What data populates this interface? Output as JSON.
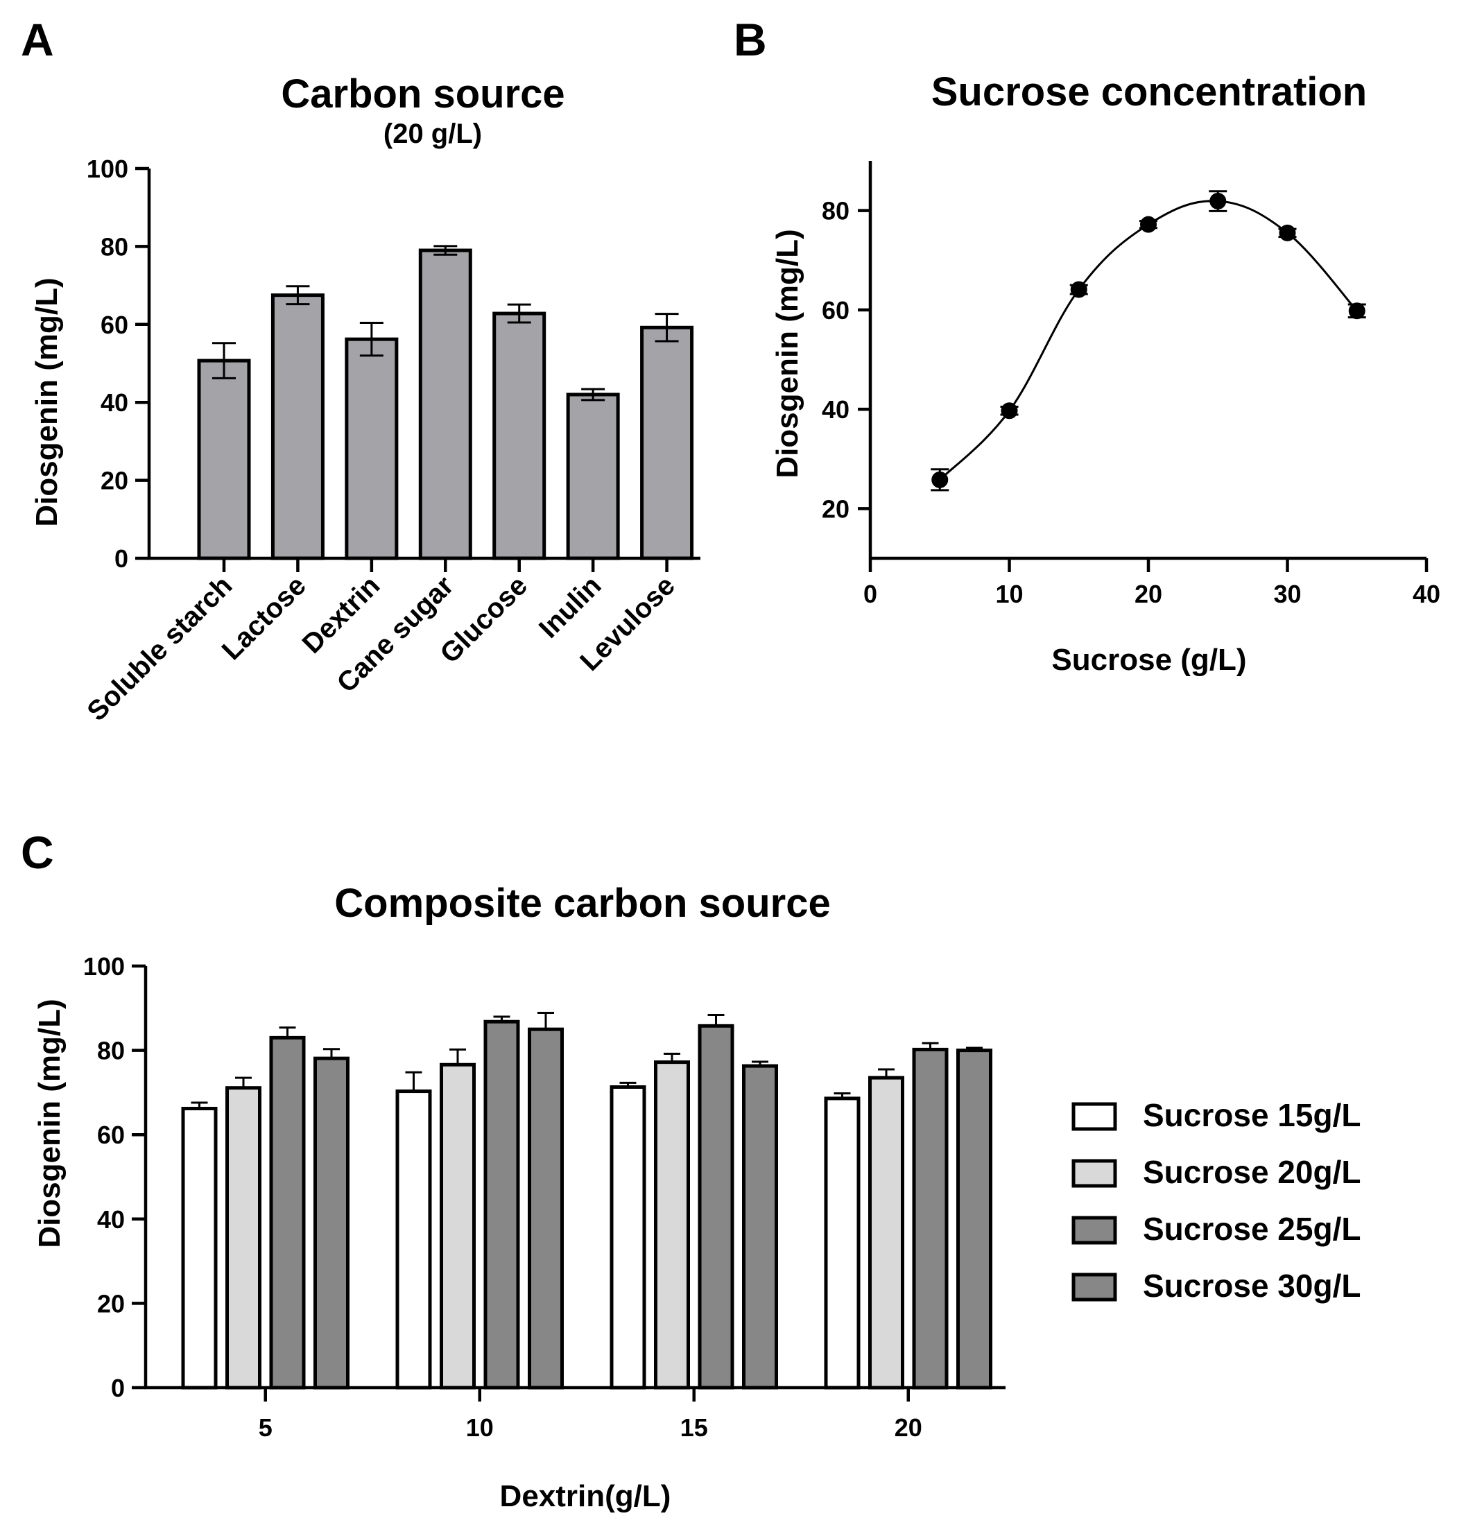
{
  "panels": {
    "a": {
      "letter": "A"
    },
    "b": {
      "letter": "B"
    },
    "c": {
      "letter": "C"
    }
  },
  "chart_data": [
    {
      "id": "A",
      "type": "bar",
      "title": "Carbon source",
      "subtitle": "(20 g/L)",
      "xlabel": "",
      "ylabel": "Diosgenin (mg/L)",
      "ylim": [
        0,
        100
      ],
      "yticks": [
        0,
        20,
        40,
        60,
        80,
        100
      ],
      "categories": [
        "Soluble starch",
        "Lactose",
        "Dextrin",
        "Cane sugar",
        "Glucose",
        "Inulin",
        "Levulose"
      ],
      "values": [
        50.7,
        67.5,
        56.2,
        79.0,
        62.8,
        42.0,
        59.2
      ],
      "errors": [
        4.5,
        2.3,
        4.2,
        1.1,
        2.3,
        1.4,
        3.5
      ],
      "bar_color": "#a4a3a8",
      "grid": false
    },
    {
      "id": "B",
      "type": "line",
      "title": "Sucrose concentration",
      "xlabel": "Sucrose (g/L)",
      "ylabel": "Diosgenin (mg/L)",
      "xlim": [
        0,
        40
      ],
      "ylim": [
        10,
        90
      ],
      "xticks": [
        0,
        10,
        20,
        30,
        40
      ],
      "yticks": [
        20,
        40,
        60,
        80
      ],
      "x": [
        5,
        10,
        15,
        20,
        25,
        30,
        35
      ],
      "y": [
        25.8,
        39.7,
        64.1,
        77.2,
        81.9,
        75.5,
        59.8
      ],
      "errors": [
        2.1,
        0.8,
        0.9,
        0.7,
        2.0,
        0.8,
        1.3
      ],
      "grid": false
    },
    {
      "id": "C",
      "type": "bar",
      "title": "Composite carbon source",
      "xlabel": "Dextrin(g/L)",
      "ylabel": "Diosgenin (mg/L)",
      "ylim": [
        0,
        100
      ],
      "yticks": [
        0,
        20,
        40,
        60,
        80,
        100
      ],
      "categories": [
        "5",
        "10",
        "15",
        "20"
      ],
      "series": [
        {
          "name": "Sucrose 15g/L",
          "color": "#ffffff",
          "values": [
            66.2,
            70.3,
            71.3,
            68.6
          ],
          "errors": [
            1.4,
            4.5,
            1.0,
            1.2
          ]
        },
        {
          "name": "Sucrose 20g/L",
          "color": "#d9d9d9",
          "values": [
            71.1,
            76.6,
            77.2,
            73.5
          ],
          "errors": [
            2.4,
            3.6,
            2.0,
            2.0
          ]
        },
        {
          "name": "Sucrose 25g/L",
          "color": "#878787",
          "values": [
            83.0,
            86.8,
            85.8,
            80.2
          ],
          "errors": [
            2.4,
            1.2,
            2.6,
            1.5
          ]
        },
        {
          "name": "Sucrose 30g/L",
          "color": "#878787",
          "values": [
            78.1,
            85.0,
            76.3,
            80.0
          ],
          "errors": [
            2.2,
            3.9,
            1.0,
            0.6
          ]
        }
      ],
      "legend_position": "right",
      "grid": false
    }
  ]
}
